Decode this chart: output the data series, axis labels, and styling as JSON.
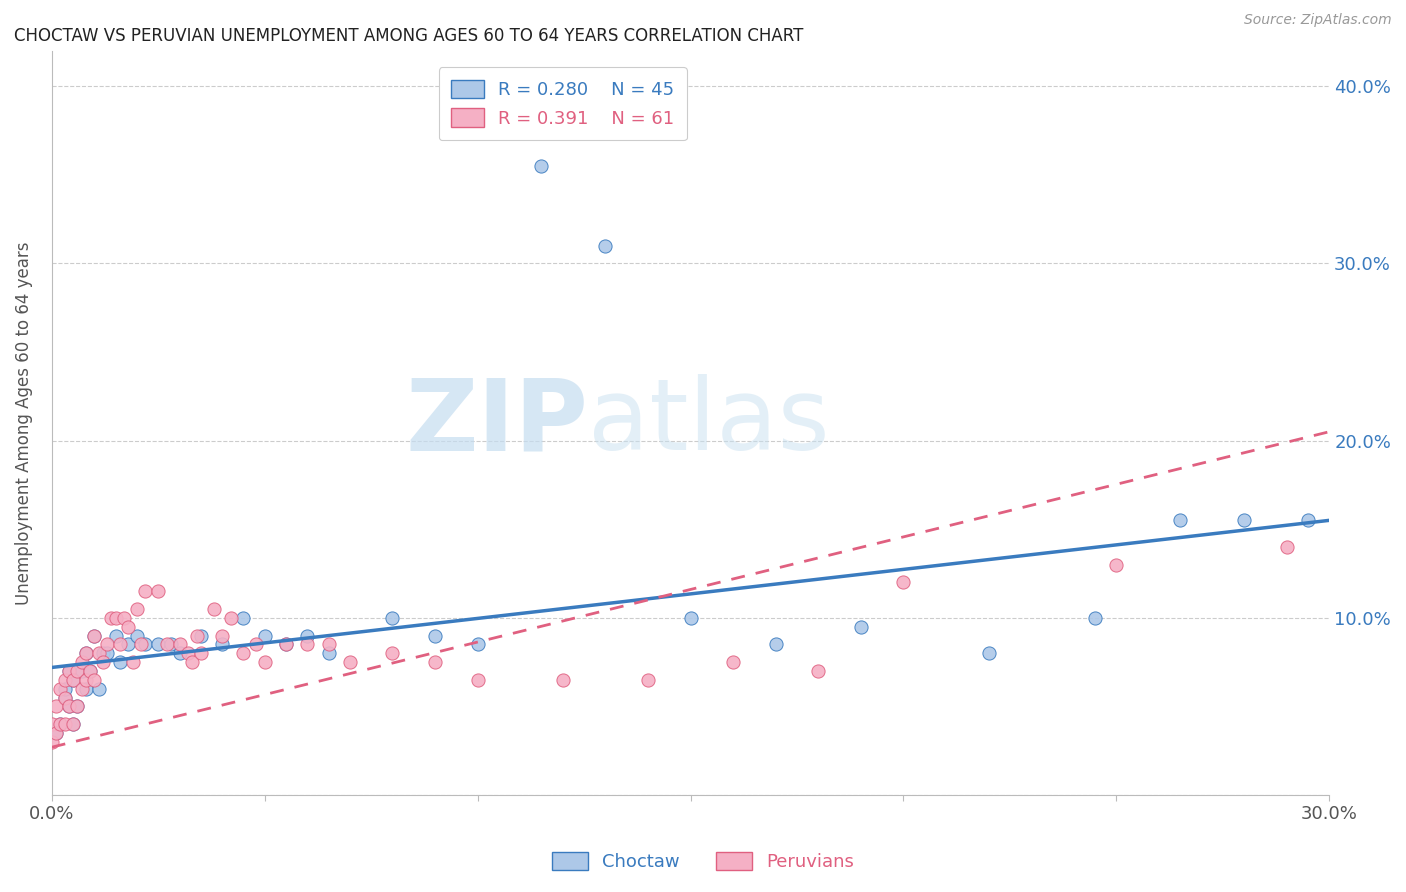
{
  "title": "CHOCTAW VS PERUVIAN UNEMPLOYMENT AMONG AGES 60 TO 64 YEARS CORRELATION CHART",
  "source": "Source: ZipAtlas.com",
  "ylabel": "Unemployment Among Ages 60 to 64 years",
  "xlim": [
    0.0,
    0.3
  ],
  "ylim": [
    0.0,
    0.42
  ],
  "xticks": [
    0.0,
    0.05,
    0.1,
    0.15,
    0.2,
    0.25,
    0.3
  ],
  "yticks": [
    0.0,
    0.1,
    0.2,
    0.3,
    0.4
  ],
  "choctaw_R": 0.28,
  "choctaw_N": 45,
  "peruvian_R": 0.391,
  "peruvian_N": 61,
  "choctaw_color": "#adc8e8",
  "peruvian_color": "#f5b0c5",
  "choctaw_line_color": "#3a7bbf",
  "peruvian_line_color": "#e06080",
  "watermark_zip": "ZIP",
  "watermark_atlas": "atlas",
  "choctaw_x": [
    0.001,
    0.002,
    0.003,
    0.003,
    0.004,
    0.004,
    0.005,
    0.005,
    0.006,
    0.007,
    0.008,
    0.008,
    0.009,
    0.01,
    0.011,
    0.012,
    0.013,
    0.015,
    0.016,
    0.018,
    0.02,
    0.022,
    0.025,
    0.028,
    0.03,
    0.035,
    0.04,
    0.045,
    0.05,
    0.055,
    0.06,
    0.065,
    0.08,
    0.09,
    0.1,
    0.115,
    0.13,
    0.15,
    0.17,
    0.19,
    0.22,
    0.245,
    0.265,
    0.28,
    0.295
  ],
  "choctaw_y": [
    0.035,
    0.04,
    0.055,
    0.06,
    0.05,
    0.07,
    0.04,
    0.065,
    0.05,
    0.07,
    0.06,
    0.08,
    0.07,
    0.09,
    0.06,
    0.08,
    0.08,
    0.09,
    0.075,
    0.085,
    0.09,
    0.085,
    0.085,
    0.085,
    0.08,
    0.09,
    0.085,
    0.1,
    0.09,
    0.085,
    0.09,
    0.08,
    0.1,
    0.09,
    0.085,
    0.355,
    0.31,
    0.1,
    0.085,
    0.095,
    0.08,
    0.1,
    0.155,
    0.155,
    0.155
  ],
  "peruvian_x": [
    0.0,
    0.0,
    0.001,
    0.001,
    0.002,
    0.002,
    0.003,
    0.003,
    0.003,
    0.004,
    0.004,
    0.005,
    0.005,
    0.006,
    0.006,
    0.007,
    0.007,
    0.008,
    0.008,
    0.009,
    0.01,
    0.01,
    0.011,
    0.012,
    0.013,
    0.014,
    0.015,
    0.016,
    0.017,
    0.018,
    0.019,
    0.02,
    0.021,
    0.022,
    0.025,
    0.027,
    0.03,
    0.032,
    0.033,
    0.034,
    0.035,
    0.038,
    0.04,
    0.042,
    0.045,
    0.048,
    0.05,
    0.055,
    0.06,
    0.065,
    0.07,
    0.08,
    0.09,
    0.1,
    0.12,
    0.14,
    0.16,
    0.18,
    0.2,
    0.25,
    0.29
  ],
  "peruvian_y": [
    0.03,
    0.04,
    0.035,
    0.05,
    0.04,
    0.06,
    0.04,
    0.055,
    0.065,
    0.05,
    0.07,
    0.04,
    0.065,
    0.05,
    0.07,
    0.06,
    0.075,
    0.065,
    0.08,
    0.07,
    0.065,
    0.09,
    0.08,
    0.075,
    0.085,
    0.1,
    0.1,
    0.085,
    0.1,
    0.095,
    0.075,
    0.105,
    0.085,
    0.115,
    0.115,
    0.085,
    0.085,
    0.08,
    0.075,
    0.09,
    0.08,
    0.105,
    0.09,
    0.1,
    0.08,
    0.085,
    0.075,
    0.085,
    0.085,
    0.085,
    0.075,
    0.08,
    0.075,
    0.065,
    0.065,
    0.065,
    0.075,
    0.07,
    0.12,
    0.13,
    0.14
  ],
  "choctaw_trend_start": 0.072,
  "choctaw_trend_end": 0.155,
  "peruvian_trend_start": 0.027,
  "peruvian_trend_end": 0.205
}
